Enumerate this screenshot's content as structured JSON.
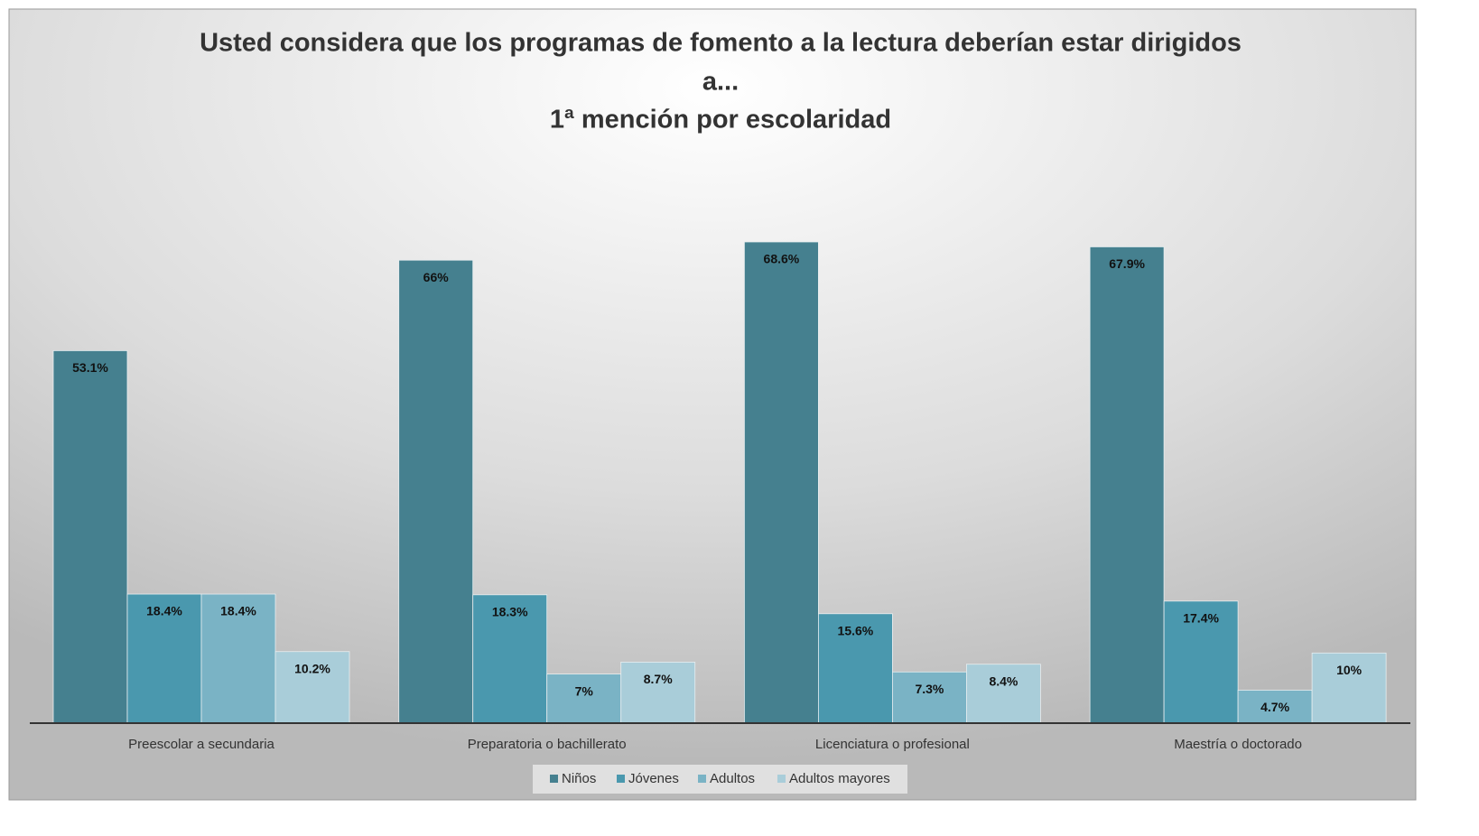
{
  "chart_data": {
    "type": "bar",
    "title": [
      "Usted considera que los programas de fomento a la lectura deberían estar dirigidos",
      "a...",
      "1ª mención por escolaridad"
    ],
    "categories": [
      "Preescolar a secundaria",
      "Preparatoria o bachillerato",
      "Licenciatura o profesional",
      "Maestría o doctorado"
    ],
    "series": [
      {
        "name": "Niños",
        "color": "#45808f",
        "values": [
          53.1,
          66,
          68.6,
          67.9
        ],
        "value_labels": [
          "53.1%",
          "66%",
          "68.6%",
          "67.9%"
        ]
      },
      {
        "name": "Jóvenes",
        "color": "#4a98ae",
        "values": [
          18.4,
          18.3,
          15.6,
          17.4
        ],
        "value_labels": [
          "18.4%",
          "18.3%",
          "15.6%",
          "17.4%"
        ]
      },
      {
        "name": "Adultos",
        "color": "#7ab3c5",
        "values": [
          18.4,
          7,
          7.3,
          4.7
        ],
        "value_labels": [
          "18.4%",
          "7%",
          "7.3%",
          "4.7%"
        ]
      },
      {
        "name": "Adultos mayores",
        "color": "#a9cdd9",
        "values": [
          10.2,
          8.7,
          8.4,
          10
        ],
        "value_labels": [
          "10.2%",
          "8.7%",
          "8.4%",
          "10%"
        ]
      }
    ],
    "legend": "bottom"
  }
}
